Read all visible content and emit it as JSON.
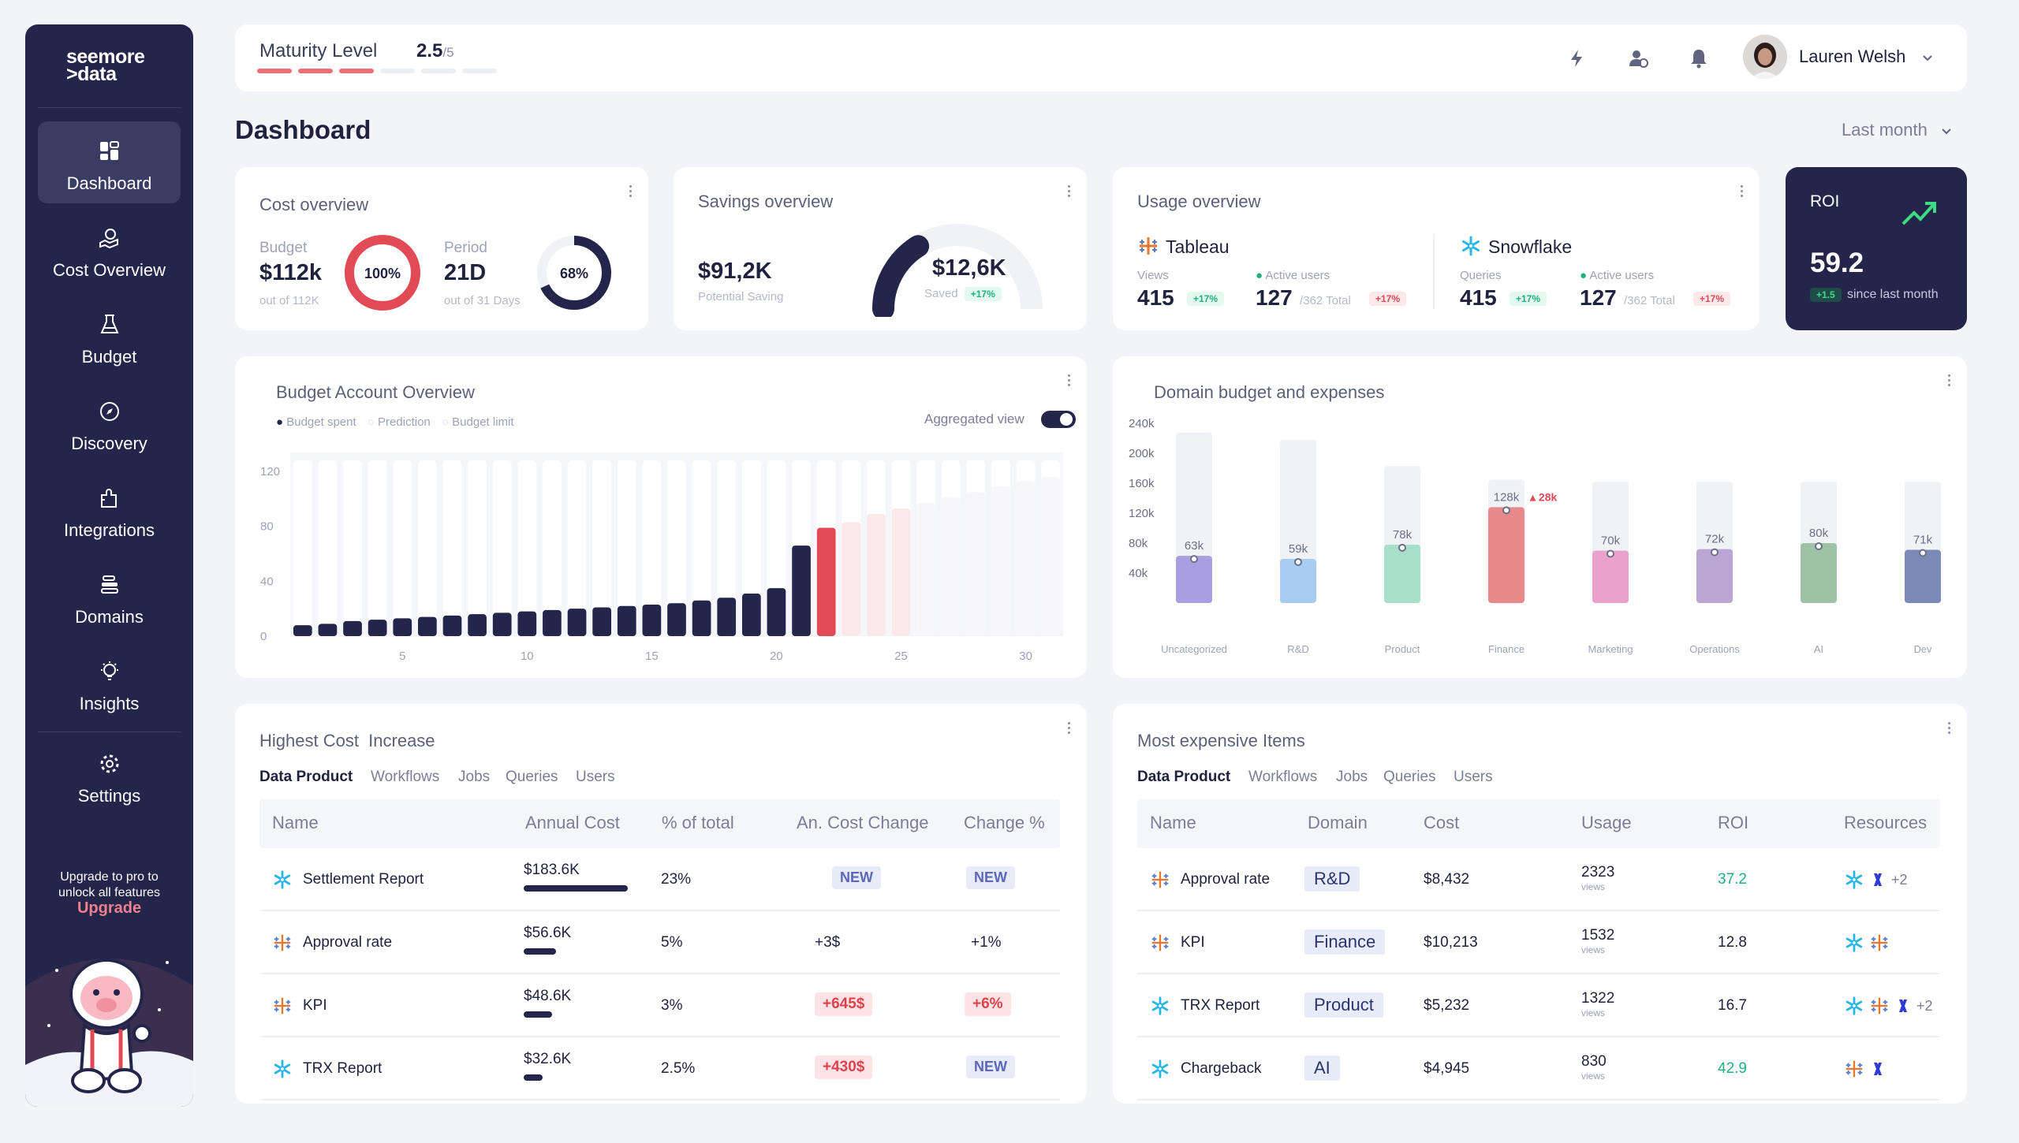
{
  "brand": {
    "line1": "seemore",
    "line2": ">data"
  },
  "sidebar": {
    "items": [
      {
        "label": "Dashboard",
        "icon": "dashboard-icon"
      },
      {
        "label": "Cost Overview",
        "icon": "cost-overview-icon"
      },
      {
        "label": "Budget",
        "icon": "budget-icon"
      },
      {
        "label": "Discovery",
        "icon": "compass-icon"
      },
      {
        "label": "Integrations",
        "icon": "puzzle-icon"
      },
      {
        "label": "Domains",
        "icon": "stack-icon"
      },
      {
        "label": "Insights",
        "icon": "lightbulb-icon"
      },
      {
        "label": "Settings",
        "icon": "gear-icon"
      }
    ],
    "upgrade_text_1": "Upgrade to pro to",
    "upgrade_text_2": "unlock all features",
    "upgrade_link": "Upgrade"
  },
  "topbar": {
    "maturity_label": "Maturity Level",
    "maturity_value": "2.5",
    "maturity_max": "/5",
    "maturity_level": 0.5,
    "user_name": "Lauren Welsh"
  },
  "page": {
    "title": "Dashboard",
    "period": "Last month"
  },
  "cost_overview": {
    "title": "Cost overview",
    "budget_label": "Budget",
    "budget_value": "$112k",
    "budget_sub": "out of 112K",
    "budget_pct": "100%",
    "budget_fill": 1.0,
    "period_label": "Period",
    "period_value": "21D",
    "period_sub": "out of 31 Days",
    "period_pct": "68%",
    "period_fill": 0.68
  },
  "savings_overview": {
    "title": "Savings overview",
    "potential_value": "$91,2K",
    "potential_label": "Potential Saving",
    "saved_value": "$12,6K",
    "saved_label": "Saved",
    "saved_badge": "+17%",
    "saved_fill": 0.14
  },
  "usage_overview": {
    "title": "Usage overview",
    "tools": [
      {
        "name": "Tableau",
        "metric_label": "Views",
        "metric_value": "415",
        "metric_badge": "+17%",
        "active_label": "Active users",
        "active_value": "127",
        "active_total": "/362 Total",
        "active_badge": "+17%"
      },
      {
        "name": "Snowflake",
        "metric_label": "Queries",
        "metric_value": "415",
        "metric_badge": "+17%",
        "active_label": "Active users",
        "active_value": "127",
        "active_total": "/362 Total",
        "active_badge": "+17%"
      }
    ]
  },
  "roi": {
    "title": "ROI",
    "value": "59.2",
    "badge": "+1.5",
    "sub": "since last month"
  },
  "budget_account": {
    "title": "Budget Account Overview",
    "legend": [
      "Budget spent",
      "Prediction",
      "Budget limit"
    ],
    "toggle_label": "Aggregated view",
    "chart_data": {
      "type": "bar",
      "y_ticks": [
        "120",
        "80",
        "40",
        "0"
      ],
      "x_ticks": [
        "5",
        "10",
        "15",
        "20",
        "25",
        "30"
      ],
      "ylim": [
        0,
        135
      ],
      "days": [
        1,
        2,
        3,
        4,
        5,
        6,
        7,
        8,
        9,
        10,
        11,
        12,
        13,
        14,
        15,
        16,
        17,
        18,
        19,
        20,
        21,
        22,
        23,
        24,
        25,
        26,
        27,
        28,
        29,
        30,
        31
      ],
      "spent": [
        8,
        9,
        11,
        12,
        13,
        14,
        15,
        16,
        17,
        18,
        19,
        20,
        21,
        22,
        23,
        24,
        26,
        28,
        31,
        35,
        66,
        79
      ],
      "prediction": [
        null,
        null,
        null,
        null,
        null,
        null,
        null,
        null,
        null,
        null,
        null,
        null,
        null,
        null,
        null,
        null,
        null,
        null,
        null,
        null,
        null,
        null,
        83,
        89,
        93,
        97,
        101,
        105,
        109,
        113,
        116
      ],
      "limit": 128,
      "over_budget_day": 22
    }
  },
  "domain_budget": {
    "title": "Domain budget and expenses",
    "chart_data": {
      "type": "bar",
      "y_ticks": [
        "240k",
        "200k",
        "160k",
        "120k",
        "80k",
        "40k"
      ],
      "ylim": [
        0,
        240
      ],
      "categories": [
        "Uncategorized",
        "R&D",
        "Product",
        "Finance",
        "Marketing",
        "Operations",
        "AI",
        "Dev"
      ],
      "budget": [
        228,
        218,
        183,
        165,
        162,
        162,
        162,
        162
      ],
      "spent": [
        63,
        59,
        78,
        128,
        70,
        72,
        80,
        71
      ],
      "labels": [
        "63k",
        "59k",
        "78k",
        "128k",
        "70k",
        "72k",
        "80k",
        "71k"
      ],
      "over_label": "28k",
      "colors": [
        "#a99ee0",
        "#a9cdf2",
        "#a7dfcb",
        "#e88a8c",
        "#eaa1cc",
        "#bba5d5",
        "#9fc1a5",
        "#7c8ab8"
      ]
    }
  },
  "highest_cost": {
    "title": "Highest Cost  Increase",
    "tabs": [
      "Data Product",
      "Workflows",
      "Jobs",
      "Queries",
      "Users"
    ],
    "columns": [
      "Name",
      "Annual Cost",
      "% of total",
      "An. Cost Change",
      "Change %"
    ],
    "rows": [
      {
        "name": "Settlement Report",
        "icon": "snowflake-icon",
        "cost": "$183.6K",
        "cost_fill": 1.0,
        "pct": "23%",
        "change": "NEW",
        "change_pct": "NEW"
      },
      {
        "name": "Approval rate",
        "icon": "tableau-icon",
        "cost": "$56.6K",
        "cost_fill": 0.31,
        "pct": "5%",
        "change": "+3$",
        "change_pct": "+1%"
      },
      {
        "name": "KPI",
        "icon": "tableau-icon",
        "cost": "$48.6K",
        "cost_fill": 0.27,
        "pct": "3%",
        "change": "+645$",
        "change_pct": "+6%"
      },
      {
        "name": "TRX Report",
        "icon": "snowflake-icon",
        "cost": "$32.6K",
        "cost_fill": 0.18,
        "pct": "2.5%",
        "change": "+430$",
        "change_pct": "NEW"
      }
    ]
  },
  "most_expensive": {
    "title": "Most expensive Items",
    "tabs": [
      "Data Product",
      "Workflows",
      "Jobs",
      "Queries",
      "Users"
    ],
    "columns": [
      "Name",
      "Domain",
      "Cost",
      "Usage",
      "ROI",
      "Resources"
    ],
    "usage_unit": "views",
    "rows": [
      {
        "name": "Approval rate",
        "icon": "tableau-icon",
        "domain": "R&D",
        "cost": "$8,432",
        "usage": "2323",
        "roi": "37.2",
        "resources_more": "+2"
      },
      {
        "name": "KPI",
        "icon": "tableau-icon",
        "domain": "Finance",
        "cost": "$10,213",
        "usage": "1532",
        "roi": "12.8",
        "resources_more": ""
      },
      {
        "name": "TRX Report",
        "icon": "snowflake-icon",
        "domain": "Product",
        "cost": "$5,232",
        "usage": "1322",
        "roi": "16.7",
        "resources_more": "+2"
      },
      {
        "name": "Chargeback",
        "icon": "snowflake-icon",
        "domain": "AI",
        "cost": "$4,945",
        "usage": "830",
        "roi": "42.9",
        "resources_more": ""
      }
    ]
  },
  "colors": {
    "navy": "#23254a",
    "red": "#e24a55",
    "green": "#22b07d",
    "accent_pink": "#f08090"
  }
}
